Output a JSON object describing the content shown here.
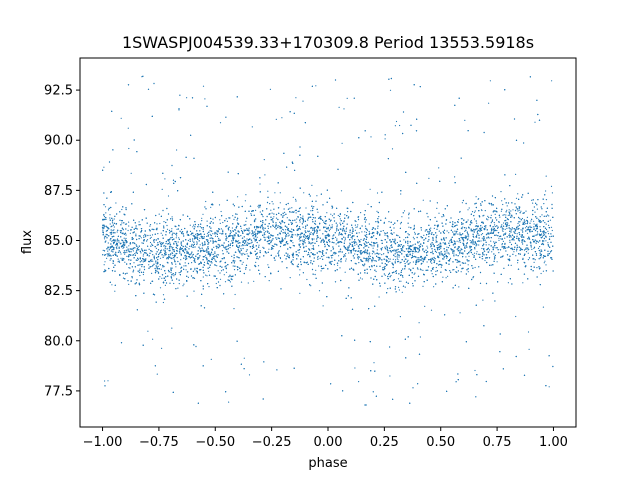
{
  "chart_data": {
    "type": "scatter",
    "title": "1SWASPJ004539.33+170309.8 Period 13553.5918s",
    "xlabel": "phase",
    "ylabel": "flux",
    "xlim": [
      -1.1,
      1.1
    ],
    "ylim": [
      75.7,
      94.1
    ],
    "x_ticks": [
      -1.0,
      -0.75,
      -0.5,
      -0.25,
      0.0,
      0.25,
      0.5,
      0.75,
      1.0
    ],
    "x_tick_labels": [
      "−1.00",
      "−0.75",
      "−0.50",
      "−0.25",
      "0.00",
      "0.25",
      "0.50",
      "0.75",
      "1.00"
    ],
    "y_ticks": [
      77.5,
      80.0,
      82.5,
      85.0,
      87.5,
      90.0,
      92.5
    ],
    "y_tick_labels": [
      "77.5",
      "80.0",
      "82.5",
      "85.0",
      "87.5",
      "90.0",
      "92.5"
    ],
    "grid": false,
    "marker_color": "#1f77b4",
    "phase_range": [
      -1.0,
      1.0
    ],
    "flux_range": [
      76.6,
      93.2
    ],
    "light_curve_mean": [
      {
        "phase": -1.0,
        "flux": 85.0
      },
      {
        "phase": -0.75,
        "flux": 84.4
      },
      {
        "phase": -0.5,
        "flux": 84.6
      },
      {
        "phase": -0.25,
        "flux": 85.4
      },
      {
        "phase": 0.0,
        "flux": 85.1
      },
      {
        "phase": 0.25,
        "flux": 84.4
      },
      {
        "phase": 0.5,
        "flux": 84.6
      },
      {
        "phase": 0.75,
        "flux": 85.4
      },
      {
        "phase": 1.0,
        "flux": 85.0
      }
    ]
  }
}
